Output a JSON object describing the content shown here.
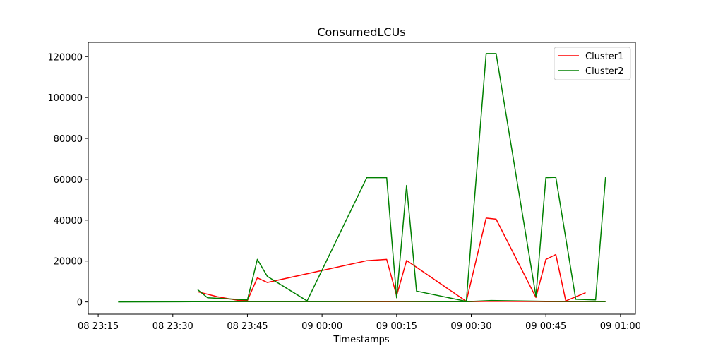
{
  "chart_data": {
    "type": "line",
    "title": "ConsumedLCUs",
    "xlabel": "Timestamps",
    "ylabel": "",
    "x_unit": "time (HH:MM)",
    "xlim": [
      "23:13",
      "01:03"
    ],
    "ylim": [
      -6000,
      127000
    ],
    "xticks": [
      {
        "time": "23:15",
        "label": "08 23:15"
      },
      {
        "time": "23:30",
        "label": "08 23:30"
      },
      {
        "time": "23:45",
        "label": "08 23:45"
      },
      {
        "time": "00:00",
        "label": "09 00:00"
      },
      {
        "time": "00:15",
        "label": "09 00:15"
      },
      {
        "time": "00:30",
        "label": "09 00:30"
      },
      {
        "time": "00:45",
        "label": "09 00:45"
      },
      {
        "time": "01:00",
        "label": "09 01:00"
      }
    ],
    "yticks": [
      0,
      20000,
      40000,
      60000,
      80000,
      100000,
      120000
    ],
    "ytick_labels": [
      "0",
      "20000",
      "40000",
      "60000",
      "80000",
      "100000",
      "120000"
    ],
    "legend_position": "top-right",
    "grid": false,
    "series": [
      {
        "name": "Cluster1",
        "color": "#ff0000",
        "lines": [
          [
            [
              "23:35",
              5000
            ],
            [
              "23:39",
              2500
            ],
            [
              "23:43",
              800
            ],
            [
              "23:45",
              700
            ],
            [
              "23:47",
              11800
            ],
            [
              "23:49",
              9500
            ],
            [
              "00:09",
              20200
            ],
            [
              "00:13",
              20800
            ],
            [
              "00:15",
              3000
            ],
            [
              "00:17",
              20300
            ],
            [
              "00:29",
              300
            ],
            [
              "00:33",
              41000
            ],
            [
              "00:35",
              40500
            ],
            [
              "00:43",
              2200
            ],
            [
              "00:45",
              20800
            ],
            [
              "00:47",
              23200
            ],
            [
              "00:49",
              500
            ],
            [
              "00:53",
              4500
            ]
          ],
          [
            [
              "23:34",
              200
            ],
            [
              "23:45",
              150
            ],
            [
              "00:00",
              100
            ],
            [
              "00:15",
              150
            ],
            [
              "00:30",
              100
            ],
            [
              "00:34",
              300
            ],
            [
              "00:45",
              150
            ],
            [
              "00:57",
              100
            ]
          ]
        ]
      },
      {
        "name": "Cluster2",
        "color": "#008000",
        "lines": [
          [
            [
              "23:35",
              6000
            ],
            [
              "23:37",
              2000
            ],
            [
              "23:45",
              1000
            ],
            [
              "23:47",
              20800
            ],
            [
              "23:49",
              12500
            ],
            [
              "23:57",
              500
            ],
            [
              "00:09",
              60800
            ],
            [
              "00:13",
              60800
            ],
            [
              "00:15",
              2000
            ],
            [
              "00:17",
              57000
            ],
            [
              "00:19",
              5300
            ],
            [
              "00:29",
              300
            ],
            [
              "00:33",
              121500
            ],
            [
              "00:35",
              121500
            ],
            [
              "00:43",
              2800
            ],
            [
              "00:45",
              60800
            ],
            [
              "00:47",
              61000
            ],
            [
              "00:51",
              1300
            ],
            [
              "00:55",
              1000
            ],
            [
              "00:57",
              61000
            ]
          ],
          [
            [
              "23:19",
              0
            ],
            [
              "23:34",
              100
            ],
            [
              "23:45",
              200
            ],
            [
              "00:00",
              200
            ],
            [
              "00:13",
              300
            ],
            [
              "00:29",
              100
            ],
            [
              "00:34",
              700
            ],
            [
              "00:45",
              300
            ],
            [
              "00:57",
              200
            ]
          ]
        ]
      }
    ]
  }
}
